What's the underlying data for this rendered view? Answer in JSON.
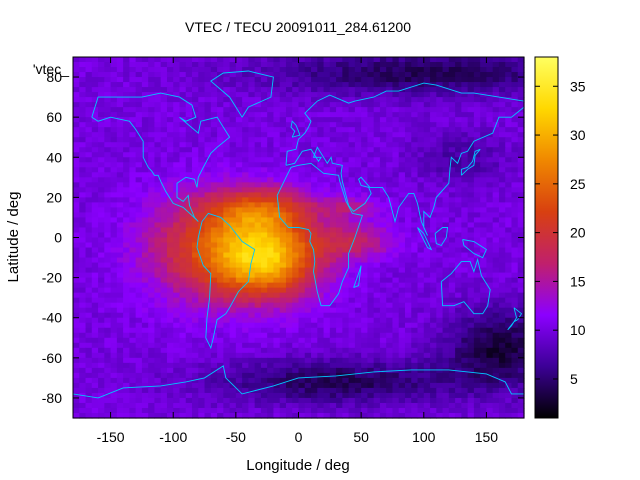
{
  "chart_data": {
    "type": "heatmap",
    "title": "VTEC / TECU 20091011_284.61200",
    "xlabel": "Longitude / deg",
    "ylabel": "Latitude / deg",
    "series_label": "'vtec_",
    "xlim": [
      -180,
      180
    ],
    "ylim": [
      -90,
      90
    ],
    "xticks": [
      -150,
      -100,
      -50,
      0,
      50,
      100,
      150
    ],
    "yticks": [
      -80,
      -60,
      -40,
      -20,
      0,
      20,
      40,
      60,
      80
    ],
    "colorbar": {
      "range": [
        1,
        38
      ],
      "ticks": [
        5,
        10,
        15,
        20,
        25,
        30,
        35
      ],
      "palette": [
        "#000000",
        "#3c0096",
        "#8c00ff",
        "#c0206c",
        "#d84010",
        "#f08800",
        "#ffd800",
        "#ffff60"
      ]
    },
    "grid_lon_step": 5,
    "grid_lat_step": 2.5,
    "background_tec": 10,
    "features": [
      {
        "name": "equatorial-anomaly-core",
        "lon": -25,
        "lat": -10,
        "amp": 20,
        "sigma_lon": 30,
        "sigma_lat": 14
      },
      {
        "name": "atlantic-crest-north",
        "lon": -30,
        "lat": 14,
        "amp": 10,
        "sigma_lon": 28,
        "sigma_lat": 8
      },
      {
        "name": "south-america-band",
        "lon": -75,
        "lat": -5,
        "amp": 10,
        "sigma_lon": 35,
        "sigma_lat": 18
      },
      {
        "name": "africa-tongue",
        "lon": 45,
        "lat": -2,
        "amp": 7,
        "sigma_lon": 22,
        "sigma_lat": 6
      },
      {
        "name": "africa-north-finger",
        "lon": 40,
        "lat": 15,
        "amp": 5,
        "sigma_lon": 18,
        "sigma_lat": 4
      },
      {
        "name": "south-pacific-low",
        "lon": 160,
        "lat": -55,
        "amp": -7,
        "sigma_lon": 30,
        "sigma_lat": 14
      },
      {
        "name": "south-atlantic-low",
        "lon": 30,
        "lat": -72,
        "amp": -6,
        "sigma_lon": 70,
        "sigma_lat": 8
      },
      {
        "name": "arctic-low",
        "lon": 100,
        "lat": 82,
        "amp": -6,
        "sigma_lon": 90,
        "sigma_lat": 8
      },
      {
        "name": "asia-high-lat-low",
        "lon": 130,
        "lat": 40,
        "amp": -3,
        "sigma_lon": 25,
        "sigma_lat": 10
      }
    ],
    "coastlines": [
      {
        "name": "north-america",
        "points": [
          [
            -165,
            60
          ],
          [
            -160,
            70
          ],
          [
            -140,
            70
          ],
          [
            -125,
            70
          ],
          [
            -110,
            72
          ],
          [
            -95,
            70
          ],
          [
            -85,
            66
          ],
          [
            -82,
            60
          ],
          [
            -90,
            58
          ],
          [
            -95,
            60
          ],
          [
            -80,
            52
          ],
          [
            -78,
            58
          ],
          [
            -65,
            60
          ],
          [
            -60,
            55
          ],
          [
            -55,
            50
          ],
          [
            -65,
            45
          ],
          [
            -70,
            42
          ],
          [
            -76,
            35
          ],
          [
            -80,
            30
          ],
          [
            -81,
            25
          ],
          [
            -83,
            29
          ],
          [
            -90,
            30
          ],
          [
            -97,
            27
          ],
          [
            -97,
            20
          ],
          [
            -92,
            18
          ],
          [
            -88,
            21
          ],
          [
            -87,
            16
          ],
          [
            -83,
            10
          ],
          [
            -80,
            8
          ],
          [
            -85,
            11
          ],
          [
            -92,
            15
          ],
          [
            -100,
            17
          ],
          [
            -106,
            23
          ],
          [
            -110,
            28
          ],
          [
            -112,
            31
          ],
          [
            -115,
            31
          ],
          [
            -117,
            33
          ],
          [
            -120,
            35
          ],
          [
            -124,
            40
          ],
          [
            -124,
            48
          ],
          [
            -130,
            54
          ],
          [
            -135,
            58
          ],
          [
            -150,
            60
          ],
          [
            -160,
            58
          ],
          [
            -165,
            60
          ]
        ]
      },
      {
        "name": "greenland",
        "points": [
          [
            -45,
            60
          ],
          [
            -40,
            65
          ],
          [
            -22,
            70
          ],
          [
            -20,
            80
          ],
          [
            -40,
            83
          ],
          [
            -60,
            82
          ],
          [
            -70,
            78
          ],
          [
            -55,
            70
          ],
          [
            -50,
            65
          ],
          [
            -45,
            60
          ]
        ]
      },
      {
        "name": "south-america",
        "points": [
          [
            -77,
            8
          ],
          [
            -72,
            12
          ],
          [
            -62,
            10
          ],
          [
            -55,
            6
          ],
          [
            -50,
            2
          ],
          [
            -45,
            -2
          ],
          [
            -35,
            -6
          ],
          [
            -38,
            -13
          ],
          [
            -40,
            -22
          ],
          [
            -48,
            -27
          ],
          [
            -55,
            -35
          ],
          [
            -58,
            -38
          ],
          [
            -65,
            -41
          ],
          [
            -68,
            -50
          ],
          [
            -70,
            -55
          ],
          [
            -74,
            -50
          ],
          [
            -73,
            -40
          ],
          [
            -71,
            -30
          ],
          [
            -70,
            -18
          ],
          [
            -76,
            -14
          ],
          [
            -81,
            -5
          ],
          [
            -80,
            0
          ],
          [
            -77,
            8
          ]
        ]
      },
      {
        "name": "africa",
        "points": [
          [
            -17,
            21
          ],
          [
            -16,
            15
          ],
          [
            -15,
            10
          ],
          [
            -8,
            5
          ],
          [
            0,
            5
          ],
          [
            8,
            4
          ],
          [
            10,
            2
          ],
          [
            9,
            -2
          ],
          [
            12,
            -6
          ],
          [
            13,
            -12
          ],
          [
            12,
            -17
          ],
          [
            15,
            -27
          ],
          [
            18,
            -34
          ],
          [
            25,
            -34
          ],
          [
            32,
            -28
          ],
          [
            35,
            -22
          ],
          [
            40,
            -15
          ],
          [
            40,
            -8
          ],
          [
            45,
            0
          ],
          [
            51,
            11
          ],
          [
            43,
            12
          ],
          [
            38,
            18
          ],
          [
            33,
            28
          ],
          [
            32,
            31
          ],
          [
            20,
            32
          ],
          [
            10,
            37
          ],
          [
            0,
            36
          ],
          [
            -6,
            35
          ],
          [
            -10,
            30
          ],
          [
            -17,
            21
          ]
        ]
      },
      {
        "name": "madagascar",
        "points": [
          [
            44,
            -25
          ],
          [
            49,
            -16
          ],
          [
            50,
            -14
          ],
          [
            48,
            -24
          ],
          [
            44,
            -25
          ]
        ]
      },
      {
        "name": "eurasia",
        "points": [
          [
            -10,
            36
          ],
          [
            -9,
            43
          ],
          [
            -2,
            44
          ],
          [
            0,
            49
          ],
          [
            5,
            52
          ],
          [
            8,
            55
          ],
          [
            10,
            58
          ],
          [
            5,
            62
          ],
          [
            15,
            68
          ],
          [
            25,
            71
          ],
          [
            40,
            67
          ],
          [
            45,
            68
          ],
          [
            60,
            70
          ],
          [
            70,
            73
          ],
          [
            80,
            73
          ],
          [
            100,
            77
          ],
          [
            110,
            76
          ],
          [
            130,
            72
          ],
          [
            140,
            72
          ],
          [
            160,
            70
          ],
          [
            180,
            68
          ],
          [
            180,
            65
          ],
          [
            170,
            60
          ],
          [
            160,
            60
          ],
          [
            155,
            52
          ],
          [
            140,
            48
          ],
          [
            135,
            43
          ],
          [
            130,
            42
          ],
          [
            127,
            37
          ],
          [
            122,
            40
          ],
          [
            121,
            35
          ],
          [
            120,
            27
          ],
          [
            110,
            20
          ],
          [
            108,
            15
          ],
          [
            105,
            10
          ],
          [
            100,
            13
          ],
          [
            100,
            5
          ],
          [
            103,
            1
          ],
          [
            98,
            8
          ],
          [
            95,
            17
          ],
          [
            92,
            22
          ],
          [
            88,
            22
          ],
          [
            80,
            15
          ],
          [
            77,
            8
          ],
          [
            72,
            20
          ],
          [
            67,
            25
          ],
          [
            57,
            25
          ],
          [
            50,
            30
          ],
          [
            48,
            29
          ],
          [
            50,
            26
          ],
          [
            56,
            25
          ],
          [
            58,
            22
          ],
          [
            53,
            17
          ],
          [
            44,
            13
          ],
          [
            40,
            16
          ],
          [
            35,
            28
          ],
          [
            34,
            32
          ],
          [
            35,
            36
          ],
          [
            27,
            37
          ],
          [
            26,
            40
          ],
          [
            23,
            37
          ],
          [
            20,
            40
          ],
          [
            15,
            45
          ],
          [
            12,
            40
          ],
          [
            18,
            40
          ],
          [
            16,
            38
          ],
          [
            10,
            44
          ],
          [
            3,
            43
          ],
          [
            -3,
            37
          ],
          [
            -10,
            36
          ]
        ]
      },
      {
        "name": "great-britain",
        "points": [
          [
            -5,
            50
          ],
          [
            1,
            51
          ],
          [
            0,
            53
          ],
          [
            -2,
            56
          ],
          [
            -5,
            58
          ],
          [
            -6,
            55
          ],
          [
            -3,
            53
          ],
          [
            -5,
            50
          ]
        ]
      },
      {
        "name": "japan",
        "points": [
          [
            130,
            31
          ],
          [
            135,
            34
          ],
          [
            140,
            36
          ],
          [
            141,
            41
          ],
          [
            145,
            44
          ],
          [
            141,
            43
          ],
          [
            139,
            38
          ],
          [
            135,
            35
          ],
          [
            130,
            34
          ],
          [
            130,
            31
          ]
        ]
      },
      {
        "name": "borneo",
        "points": [
          [
            109,
            2
          ],
          [
            115,
            5
          ],
          [
            119,
            5
          ],
          [
            118,
            0
          ],
          [
            114,
            -4
          ],
          [
            110,
            -3
          ],
          [
            109,
            2
          ]
        ]
      },
      {
        "name": "sumatra",
        "points": [
          [
            95,
            5
          ],
          [
            100,
            2
          ],
          [
            106,
            -6
          ],
          [
            103,
            -5
          ],
          [
            95,
            5
          ]
        ]
      },
      {
        "name": "new-guinea",
        "points": [
          [
            131,
            -1
          ],
          [
            140,
            -2
          ],
          [
            150,
            -6
          ],
          [
            147,
            -10
          ],
          [
            140,
            -8
          ],
          [
            132,
            -4
          ],
          [
            131,
            -1
          ]
        ]
      },
      {
        "name": "australia",
        "points": [
          [
            114,
            -22
          ],
          [
            122,
            -18
          ],
          [
            130,
            -12
          ],
          [
            137,
            -12
          ],
          [
            140,
            -17
          ],
          [
            143,
            -11
          ],
          [
            146,
            -19
          ],
          [
            153,
            -26
          ],
          [
            151,
            -34
          ],
          [
            147,
            -38
          ],
          [
            140,
            -38
          ],
          [
            132,
            -32
          ],
          [
            124,
            -34
          ],
          [
            115,
            -34
          ],
          [
            114,
            -22
          ]
        ]
      },
      {
        "name": "new-zealand",
        "points": [
          [
            172,
            -35
          ],
          [
            178,
            -38
          ],
          [
            175,
            -41
          ],
          [
            172,
            -42
          ],
          [
            167,
            -46
          ],
          [
            170,
            -44
          ],
          [
            174,
            -40
          ],
          [
            172,
            -35
          ]
        ]
      },
      {
        "name": "antarctica",
        "points": [
          [
            -180,
            -78
          ],
          [
            -160,
            -80
          ],
          [
            -140,
            -75
          ],
          [
            -110,
            -74
          ],
          [
            -90,
            -72
          ],
          [
            -75,
            -70
          ],
          [
            -60,
            -64
          ],
          [
            -58,
            -70
          ],
          [
            -45,
            -78
          ],
          [
            -20,
            -74
          ],
          [
            0,
            -70
          ],
          [
            30,
            -69
          ],
          [
            60,
            -67
          ],
          [
            90,
            -66
          ],
          [
            120,
            -66
          ],
          [
            150,
            -68
          ],
          [
            165,
            -72
          ],
          [
            170,
            -78
          ],
          [
            180,
            -78
          ]
        ]
      }
    ]
  }
}
